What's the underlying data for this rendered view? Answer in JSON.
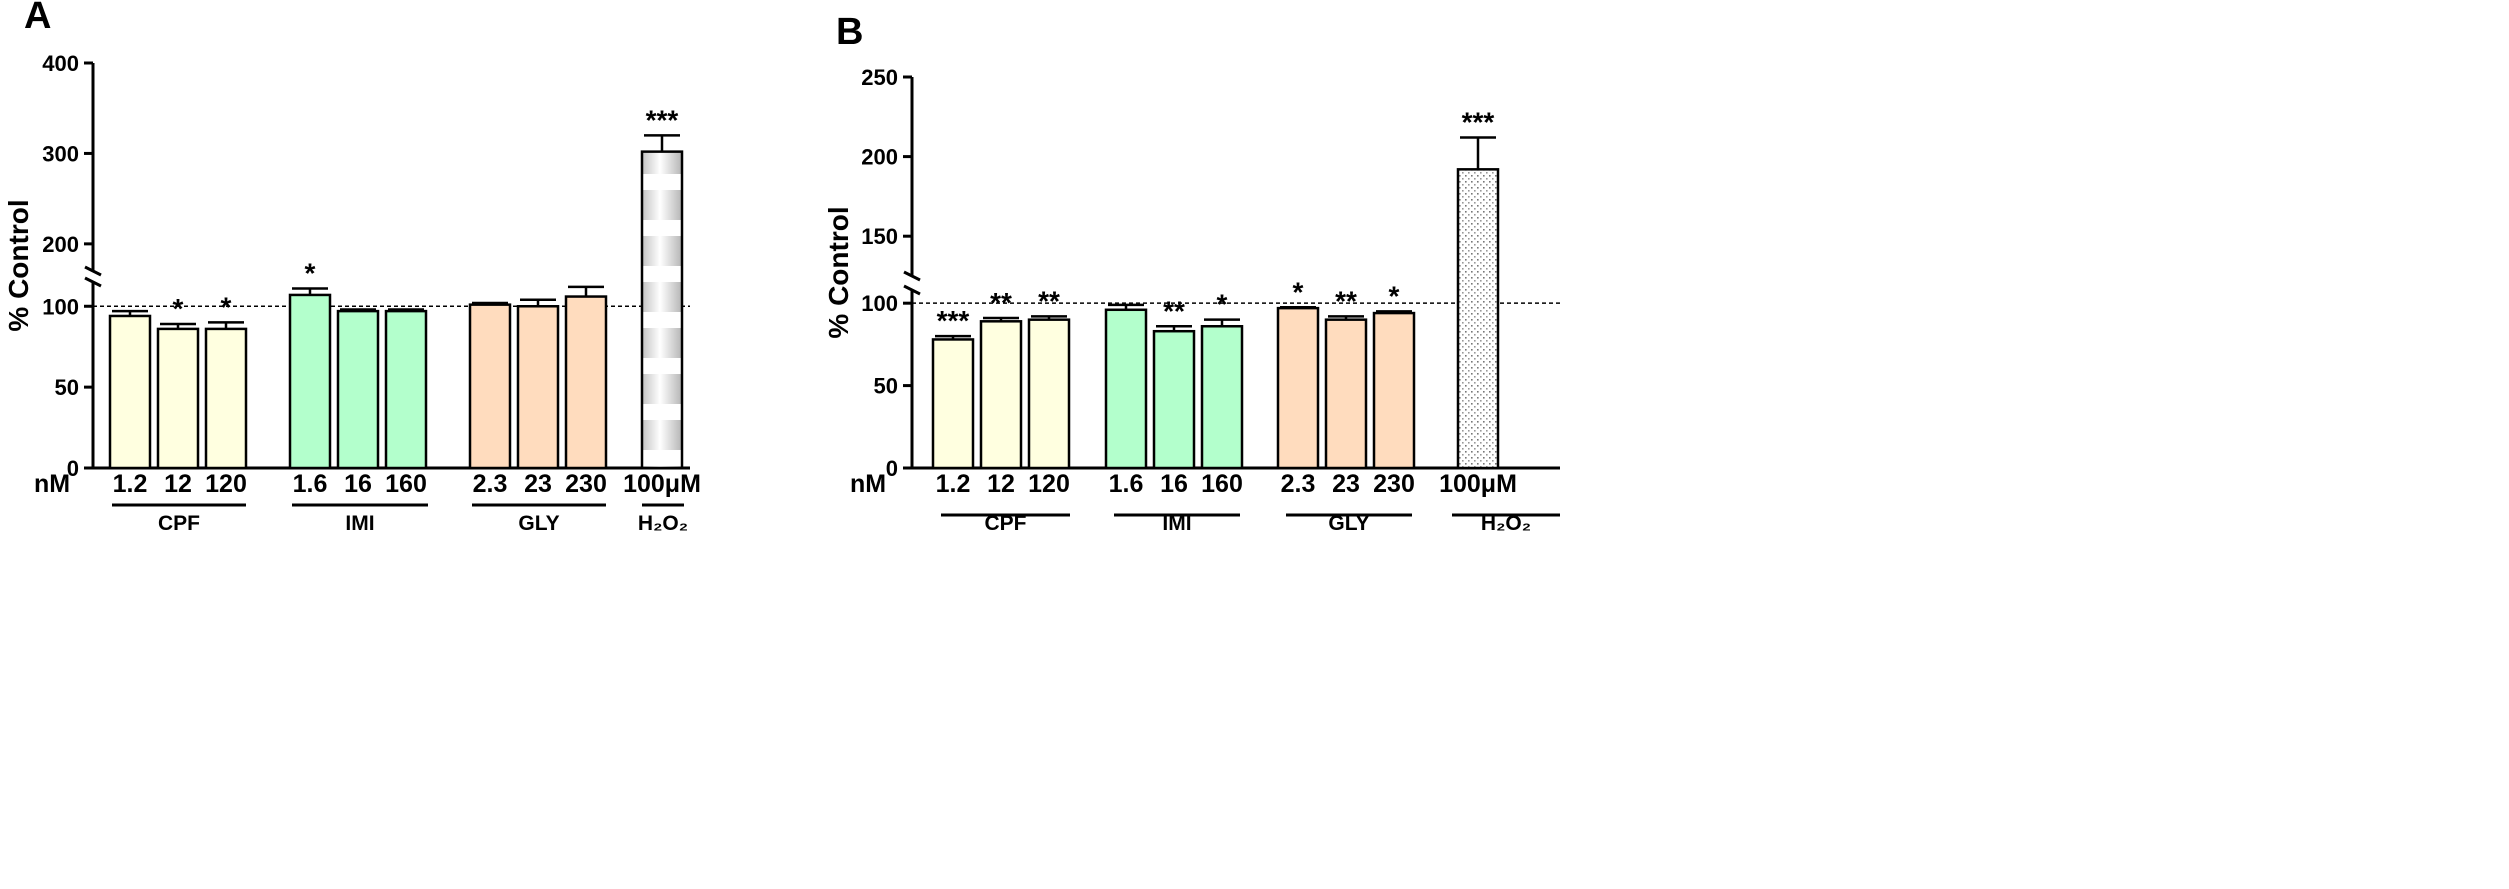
{
  "chart_data": [
    {
      "type": "bar",
      "panel_label": "A",
      "ylabel": "% Control",
      "x_unit_label": "nM",
      "y_axis_break": [
        115,
        170
      ],
      "yticks_lower": [
        0,
        50,
        100
      ],
      "yticks_upper": [
        200,
        300,
        400
      ],
      "ylim": [
        0,
        400
      ],
      "reference_line": 100,
      "bars": [
        {
          "label": "1.2",
          "value": 94,
          "error": 3,
          "group": "CPF",
          "sig": ""
        },
        {
          "label": "12",
          "value": 86,
          "error": 3,
          "group": "CPF",
          "sig": "*"
        },
        {
          "label": "120",
          "value": 86,
          "error": 4,
          "group": "CPF",
          "sig": "*"
        },
        {
          "label": "1.6",
          "value": 107,
          "error": 4,
          "group": "IMI",
          "sig": "*"
        },
        {
          "label": "16",
          "value": 97,
          "error": 1,
          "group": "IMI",
          "sig": ""
        },
        {
          "label": "160",
          "value": 97,
          "error": 1,
          "group": "IMI",
          "sig": ""
        },
        {
          "label": "2.3",
          "value": 101,
          "error": 1,
          "group": "GLY",
          "sig": ""
        },
        {
          "label": "23",
          "value": 100,
          "error": 4,
          "group": "GLY",
          "sig": ""
        },
        {
          "label": "230",
          "value": 106,
          "error": 6,
          "group": "GLY",
          "sig": ""
        },
        {
          "label": "100μM",
          "value": 302,
          "error": 18,
          "group": "H2O2",
          "sig": "***"
        }
      ],
      "groups": [
        {
          "name": "CPF",
          "label": "CPF"
        },
        {
          "name": "IMI",
          "label": "IMI"
        },
        {
          "name": "GLY",
          "label": "GLY"
        },
        {
          "name": "H2O2",
          "label": "H₂O₂"
        }
      ]
    },
    {
      "type": "bar",
      "panel_label": "B",
      "ylabel": "% Control",
      "x_unit_label": "nM",
      "y_axis_break": [
        108,
        125
      ],
      "yticks_lower": [
        0,
        50,
        100
      ],
      "yticks_upper": [
        150,
        200,
        250
      ],
      "ylim": [
        0,
        250
      ],
      "reference_line": 100,
      "bars": [
        {
          "label": "1.2",
          "value": 78,
          "error": 2,
          "group": "CPF",
          "sig": "***"
        },
        {
          "label": "12",
          "value": 89,
          "error": 2,
          "group": "CPF",
          "sig": "**"
        },
        {
          "label": "120",
          "value": 90,
          "error": 2,
          "group": "CPF",
          "sig": "**"
        },
        {
          "label": "1.6",
          "value": 96,
          "error": 3,
          "group": "IMI",
          "sig": ""
        },
        {
          "label": "16",
          "value": 83,
          "error": 3,
          "group": "IMI",
          "sig": "**"
        },
        {
          "label": "160",
          "value": 86,
          "error": 4,
          "group": "IMI",
          "sig": "*"
        },
        {
          "label": "2.3",
          "value": 97,
          "error": 0.5,
          "group": "GLY",
          "sig": "*"
        },
        {
          "label": "23",
          "value": 90,
          "error": 2,
          "group": "GLY",
          "sig": "**"
        },
        {
          "label": "230",
          "value": 94,
          "error": 1,
          "group": "GLY",
          "sig": "*"
        },
        {
          "label": "100μM",
          "value": 192,
          "error": 20,
          "group": "H2O2",
          "sig": "***"
        }
      ],
      "groups": [
        {
          "name": "CPF",
          "label": "CPF"
        },
        {
          "name": "IMI",
          "label": "IMI"
        },
        {
          "name": "GLY",
          "label": "GLY"
        },
        {
          "name": "H2O2",
          "label": "H₂O₂"
        }
      ]
    }
  ],
  "colors": {
    "CPF": "#ffffe0",
    "IMI": "#b3ffcc",
    "GLY": "#ffdcbe",
    "H2O2": "#e6e6e6"
  }
}
